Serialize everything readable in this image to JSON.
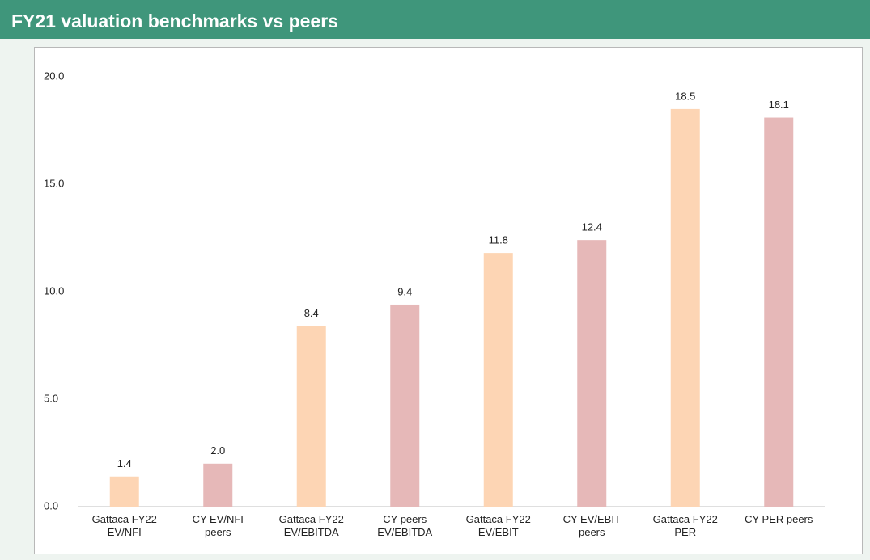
{
  "chart_data": {
    "type": "bar",
    "title": "FY21 valuation benchmarks vs peers",
    "categories": [
      "Gattaca FY22 EV/NFI",
      "CY EV/NFI peers",
      "Gattaca FY22 EV/EBITDA",
      "CY peers EV/EBITDA",
      "Gattaca FY22 EV/EBIT",
      "CY EV/EBIT peers",
      "Gattaca FY22 PER",
      "CY PER peers"
    ],
    "values": [
      1.4,
      2.0,
      8.4,
      9.4,
      11.8,
      12.4,
      18.5,
      18.1
    ],
    "value_labels": [
      "1.4",
      "2.0",
      "8.4",
      "9.4",
      "11.8",
      "12.4",
      "18.5",
      "18.1"
    ],
    "colors": [
      "#fdd5b4",
      "#e6b8b8",
      "#fdd5b4",
      "#e6b8b8",
      "#fdd5b4",
      "#e6b8b8",
      "#fdd5b4",
      "#e6b8b8"
    ],
    "ylim": [
      0,
      20
    ],
    "yticks": [
      {
        "value": 0,
        "label": "0.0"
      },
      {
        "value": 5,
        "label": "5.0"
      },
      {
        "value": 10,
        "label": "10.0"
      },
      {
        "value": 15,
        "label": "15.0"
      },
      {
        "value": 20,
        "label": "20.0"
      }
    ],
    "grid": false
  }
}
